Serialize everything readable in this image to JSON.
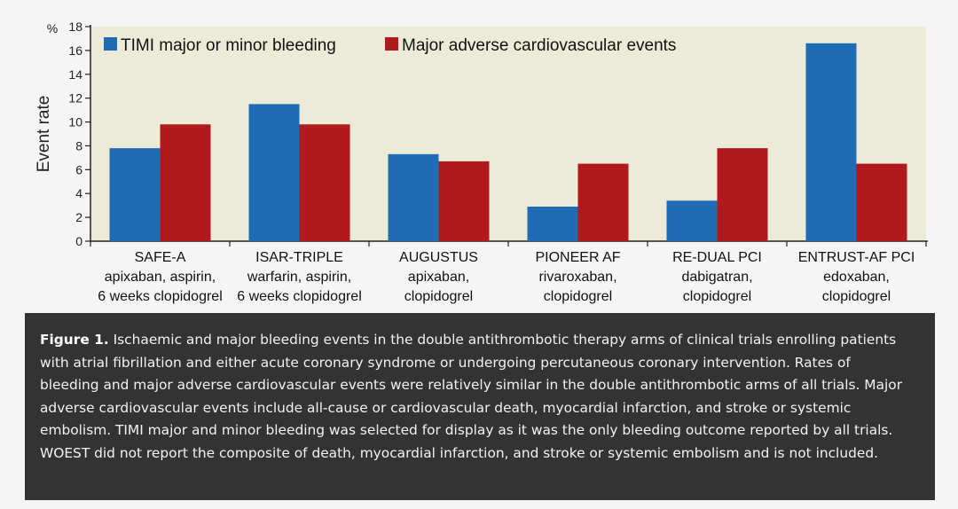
{
  "chart_data": {
    "type": "bar",
    "ylabel": "Event rate",
    "yunit": "%",
    "ylim": [
      0,
      18
    ],
    "yticks": [
      "0",
      "2",
      "4",
      "6",
      "8",
      "10",
      "12",
      "14",
      "16",
      "18"
    ],
    "categories": [
      {
        "name": "SAFE-A",
        "lines": [
          "apixaban, aspirin,",
          "6 weeks clopidogrel"
        ]
      },
      {
        "name": "ISAR-TRIPLE",
        "lines": [
          "warfarin, aspirin,",
          "6 weeks clopidogrel"
        ]
      },
      {
        "name": "AUGUSTUS",
        "lines": [
          "apixaban,",
          "clopidogrel"
        ]
      },
      {
        "name": "PIONEER AF",
        "lines": [
          "rivaroxaban,",
          "clopidogrel"
        ]
      },
      {
        "name": "RE-DUAL PCI",
        "lines": [
          "dabigatran,",
          "clopidogrel"
        ]
      },
      {
        "name": "ENTRUST-AF PCI",
        "lines": [
          "edoxaban,",
          "clopidogrel"
        ]
      }
    ],
    "series": [
      {
        "name": "TIMI major or minor bleeding",
        "color": "#1f6cb5",
        "values": [
          7.8,
          11.5,
          7.3,
          2.9,
          3.4,
          16.6
        ]
      },
      {
        "name": "Major adverse cardiovascular events",
        "color": "#b01a1d",
        "values": [
          9.8,
          9.8,
          6.7,
          6.5,
          7.8,
          6.5
        ]
      }
    ],
    "plot_background": "#ecebd7",
    "grid": false
  },
  "caption": {
    "label": "Figure 1.",
    "text": "Ischaemic and major bleeding events in the double antithrombotic therapy arms of clinical trials enrolling patients with atrial fibrillation and either acute coronary syndrome or undergoing percutaneous coronary intervention. Rates of bleeding and major adverse cardiovascular events were relatively similar in the double antithrombotic arms of all trials. Major adverse cardiovascular events include all-cause or cardiovascular death, myocardial infarction, and stroke or systemic embolism. TIMI major and minor bleeding was selected for display as it was the only bleeding outcome reported by all trials. WOEST did not report the composite of death, myocardial infarction, and stroke or systemic embolism and is not included."
  }
}
